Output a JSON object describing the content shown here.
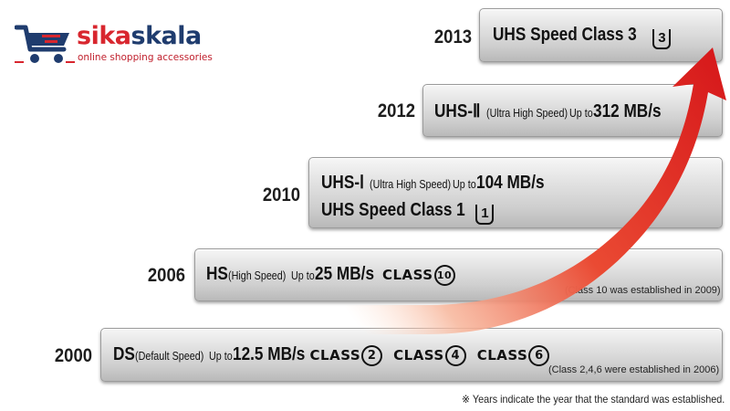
{
  "logo": {
    "name_part1": "sika",
    "name_part2": "skala",
    "tagline": "online shopping accessories",
    "colors": {
      "red": "#d8262e",
      "navy": "#1f3c6e"
    }
  },
  "standards": [
    {
      "year": "2000",
      "name": "DS",
      "full_name": "(Default Speed)",
      "speed_prefix": "Up to",
      "speed": "12.5 MB/s",
      "classes": [
        {
          "word": "CLASS",
          "num": "2"
        },
        {
          "word": "CLASS",
          "num": "4"
        },
        {
          "word": "CLASS",
          "num": "6"
        }
      ],
      "note": "(Class 2,4,6 were established in 2006)"
    },
    {
      "year": "2006",
      "name": "HS",
      "full_name": "(High Speed)",
      "speed_prefix": "Up to",
      "speed": "25 MB/s",
      "classes": [
        {
          "word": "CLASS",
          "num": "10"
        }
      ],
      "note": "(Class 10 was established in 2009)"
    },
    {
      "year": "2010",
      "name": "UHS-Ⅰ",
      "full_name": "(Ultra High Speed)",
      "speed_prefix": "Up to",
      "speed": "104 MB/s",
      "speed_class_label": "UHS Speed Class 1",
      "speed_class_num": "1"
    },
    {
      "year": "2012",
      "name": "UHS-Ⅱ",
      "full_name": "(Ultra High Speed)",
      "speed_prefix": "Up to",
      "speed": "312 MB/s"
    },
    {
      "year": "2013",
      "speed_class_label": "UHS Speed Class 3",
      "speed_class_num": "3"
    }
  ],
  "footnote": "※ Years indicate the year that the standard was established.",
  "colors": {
    "arrow_red": "#e0201c",
    "arrow_light": "#f7b59a",
    "bar": "#d4d4d4"
  }
}
